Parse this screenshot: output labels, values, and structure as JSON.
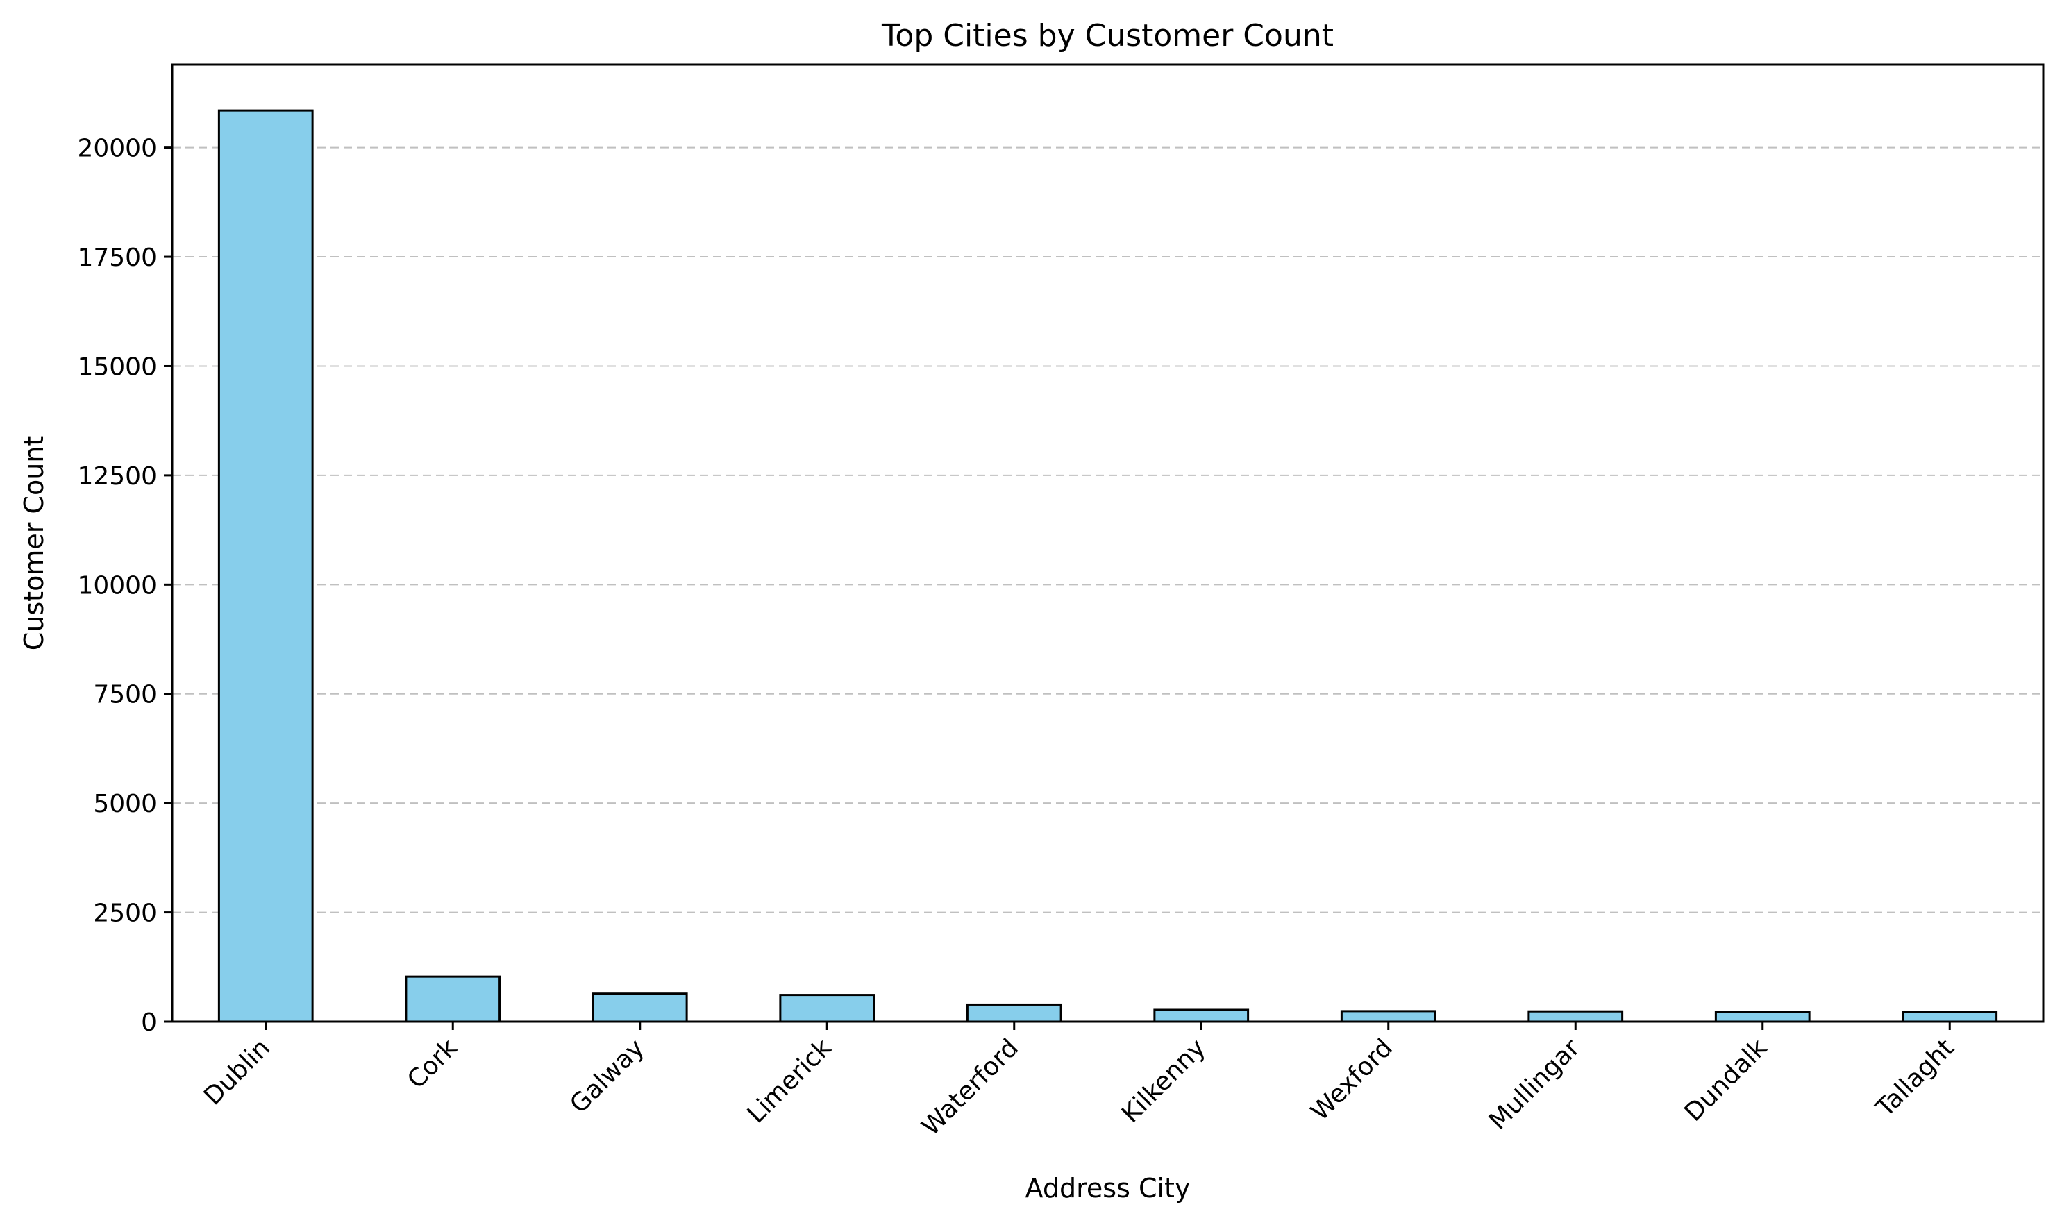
{
  "chart_data": {
    "type": "bar",
    "title": "Top Cities by Customer Count",
    "xlabel": "Address City",
    "ylabel": "Customer Count",
    "categories": [
      "Dublin",
      "Cork",
      "Galway",
      "Limerick",
      "Waterford",
      "Kilkenny",
      "Wexford",
      "Mullingar",
      "Dundalk",
      "Tallaght"
    ],
    "values": [
      20850,
      1030,
      640,
      610,
      390,
      270,
      240,
      235,
      230,
      225
    ],
    "ylim": [
      0,
      21900
    ],
    "yticks": [
      0,
      2500,
      5000,
      7500,
      10000,
      12500,
      15000,
      17500,
      20000
    ],
    "ytick_labels": [
      "0",
      "2500",
      "5000",
      "7500",
      "10000",
      "12500",
      "15000",
      "17500",
      "20000"
    ],
    "grid": "y-dashed",
    "legend": "none",
    "colors": {
      "bar_fill": "#87CEEB",
      "bar_edge": "#000000",
      "grid": "#c0c0c0",
      "axis": "#000000"
    }
  }
}
